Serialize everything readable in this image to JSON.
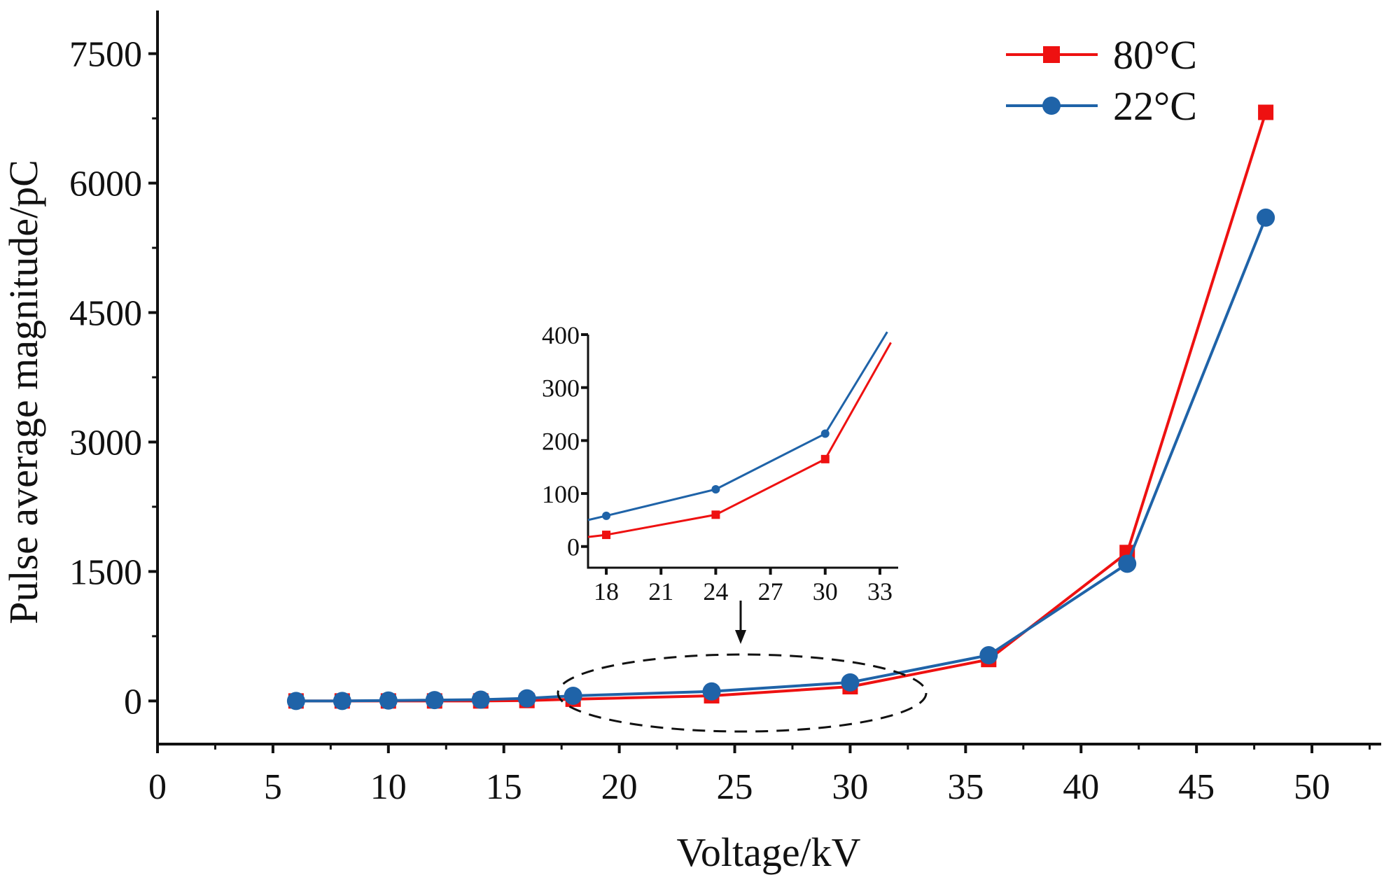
{
  "chart_data": [
    {
      "type": "line",
      "title": "",
      "xlabel": "Voltage/kV",
      "ylabel": "Pulse average magnitude/pC",
      "xlim": [
        0,
        53
      ],
      "ylim": [
        -500,
        8000
      ],
      "xticks": [
        0,
        5,
        10,
        15,
        20,
        25,
        30,
        35,
        40,
        45,
        50
      ],
      "yticks": [
        0,
        1500,
        3000,
        4500,
        6000,
        7500
      ],
      "legend": "top-right",
      "series": [
        {
          "name": "80°C",
          "color": "#ee1111",
          "marker": "square",
          "x": [
            6,
            8,
            10,
            12,
            14,
            16,
            18,
            24,
            30,
            36,
            42,
            48
          ],
          "y": [
            0,
            0,
            0,
            0,
            0,
            5,
            20,
            60,
            165,
            480,
            1720,
            6820
          ]
        },
        {
          "name": "22°C",
          "color": "#1f63a8",
          "marker": "circle",
          "x": [
            6,
            8,
            10,
            12,
            14,
            16,
            18,
            24,
            30,
            36,
            42,
            48
          ],
          "y": [
            0,
            0,
            5,
            10,
            15,
            30,
            60,
            110,
            215,
            530,
            1590,
            5600
          ]
        }
      ]
    },
    {
      "type": "line",
      "title": "",
      "role": "inset",
      "xlim": [
        17,
        34
      ],
      "ylim": [
        -40,
        400
      ],
      "xticks": [
        18,
        21,
        24,
        27,
        30,
        33
      ],
      "yticks": [
        0,
        100,
        200,
        300,
        400
      ],
      "series": [
        {
          "name": "80°C",
          "color": "#ee1111",
          "marker": "square",
          "x": [
            17,
            18,
            24,
            30,
            33.6
          ],
          "y": [
            18,
            22,
            60,
            165,
            385
          ]
        },
        {
          "name": "22°C",
          "color": "#1f63a8",
          "marker": "circle",
          "x": [
            17,
            18,
            24,
            30,
            33.4
          ],
          "y": [
            50,
            58,
            108,
            213,
            405
          ]
        }
      ]
    }
  ]
}
